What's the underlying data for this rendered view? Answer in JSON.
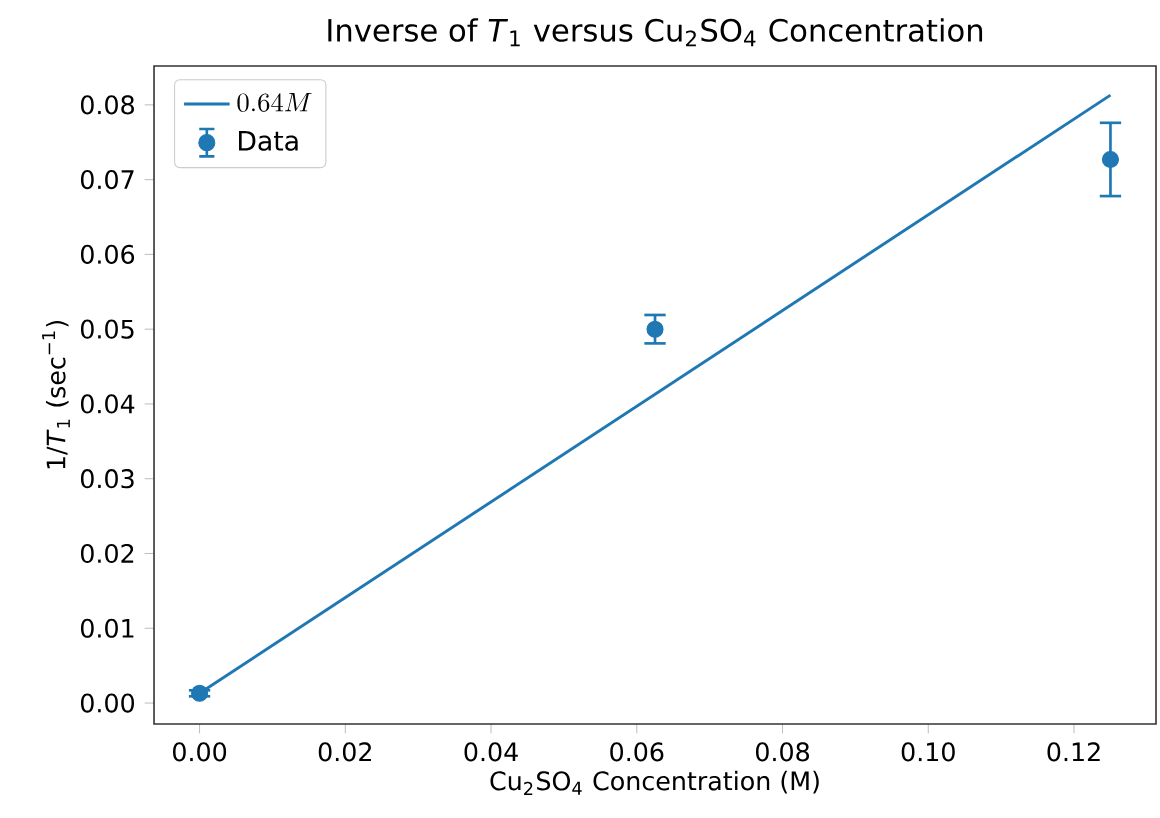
{
  "chart_data": {
    "type": "scatter",
    "title": "Inverse of *T*$_{1}$ versus Cu$_{2}$SO$_{4}$ Concentration",
    "xlabel": "Cu$_{2}$SO$_{4}$ Concentration (M)",
    "ylabel": "1/*T*$_{1}$ (sec$^{−1}$)",
    "xlim": [
      -0.00625,
      0.13125
    ],
    "ylim": [
      -0.0028,
      0.0852
    ],
    "xticks": [
      {
        "value": 0,
        "label": "0.00"
      },
      {
        "value": 0.02,
        "label": "0.02"
      },
      {
        "value": 0.04,
        "label": "0.04"
      },
      {
        "value": 0.06,
        "label": "0.06"
      },
      {
        "value": 0.08,
        "label": "0.08"
      },
      {
        "value": 0.1,
        "label": "0.10"
      },
      {
        "value": 0.12,
        "label": "0.12"
      }
    ],
    "yticks": [
      {
        "value": 0,
        "label": "0.00"
      },
      {
        "value": 0.01,
        "label": "0.01"
      },
      {
        "value": 0.02,
        "label": "0.02"
      },
      {
        "value": 0.03,
        "label": "0.03"
      },
      {
        "value": 0.04,
        "label": "0.04"
      },
      {
        "value": 0.05,
        "label": "0.05"
      },
      {
        "value": 0.06,
        "label": "0.06"
      },
      {
        "value": 0.07,
        "label": "0.07"
      },
      {
        "value": 0.08,
        "label": "0.08"
      }
    ],
    "legend": "top left",
    "series": [
      {
        "name": "0.64M",
        "type": "line",
        "color": "#1f77b4",
        "marker": "none",
        "line_style": "solid",
        "x": [
          0,
          0.125
        ],
        "values": [
          0.0013,
          0.0813
        ]
      },
      {
        "name": "Data",
        "color": "#1f77b4",
        "marker": "circle",
        "x": [
          0,
          0.0625,
          0.125
        ],
        "values": [
          0.0013,
          0.05,
          0.0727
        ],
        "errors": [
          0.0004,
          0.0019,
          0.0049
        ]
      }
    ]
  }
}
